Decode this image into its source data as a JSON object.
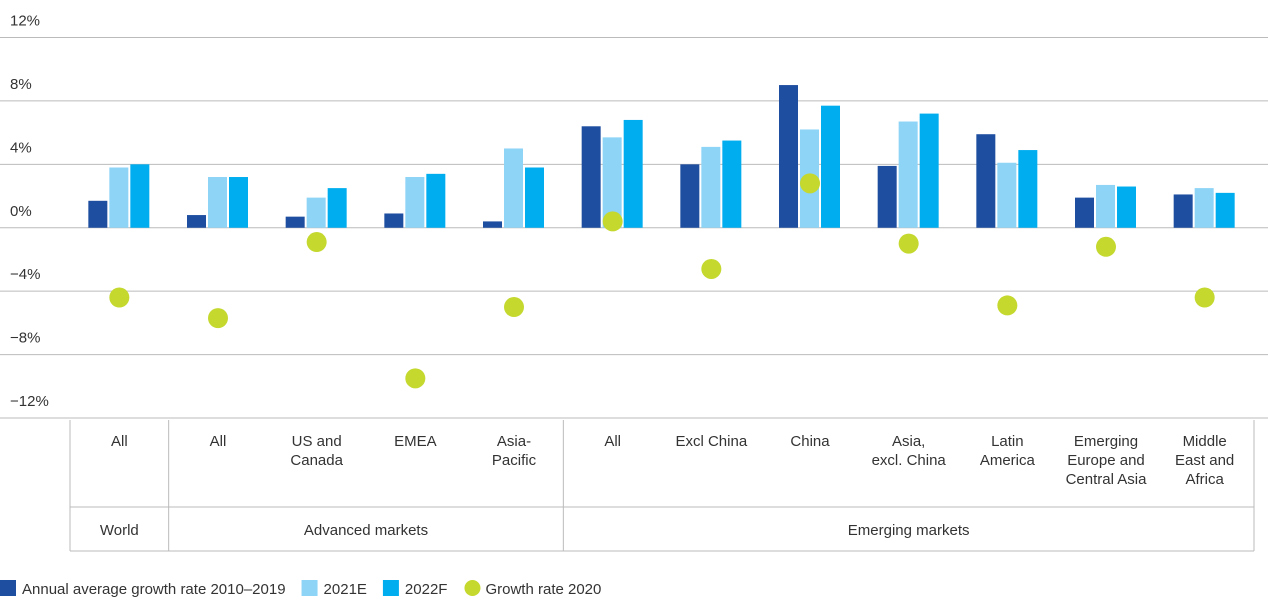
{
  "chart_data": {
    "type": "bar",
    "groups": [
      {
        "name": "World",
        "categories": [
          "All"
        ]
      },
      {
        "name": "Advanced markets",
        "categories": [
          "All",
          "US and\nCanada",
          "EMEA",
          "Asia-\nPacific"
        ]
      },
      {
        "name": "Emerging markets",
        "categories": [
          "All",
          "Excl China",
          "China",
          "Asia,\nexcl. China",
          "Latin\nAmerica",
          "Emerging\nEurope and\nCentral Asia",
          "Middle\nEast and\nAfrica"
        ]
      }
    ],
    "series": [
      {
        "name": "Annual average growth rate 2010–2019",
        "color": "#1e4ea0",
        "values": [
          1.7,
          0.8,
          0.7,
          0.9,
          0.4,
          6.4,
          4.0,
          9.0,
          3.9,
          5.9,
          1.9,
          2.1
        ]
      },
      {
        "name": "2021E",
        "color": "#8dd4f7",
        "values": [
          3.8,
          3.2,
          1.9,
          3.2,
          5.0,
          5.7,
          5.1,
          6.2,
          6.7,
          4.1,
          2.7,
          2.5
        ]
      },
      {
        "name": "2022F",
        "color": "#00aeef",
        "values": [
          4.0,
          3.2,
          2.5,
          3.4,
          3.8,
          6.8,
          5.5,
          7.7,
          7.2,
          4.9,
          2.6,
          2.2
        ]
      },
      {
        "name": "Growth rate 2020",
        "type": "scatter",
        "color": "#c4d82e",
        "values": [
          -4.4,
          -5.7,
          -0.9,
          -9.5,
          -5.0,
          0.4,
          -2.6,
          2.8,
          -1.0,
          -4.9,
          -1.2,
          -4.4
        ]
      }
    ],
    "ylim": [
      -12.6,
      12
    ],
    "yticks": [
      {
        "value": -12,
        "label": "−12%"
      },
      {
        "value": -8,
        "label": "−8%"
      },
      {
        "value": -4,
        "label": "−4%"
      },
      {
        "value": 0,
        "label": "0%"
      },
      {
        "value": 4,
        "label": "4%"
      },
      {
        "value": 8,
        "label": "8%"
      },
      {
        "value": 12,
        "label": "12%"
      }
    ],
    "grid": true
  }
}
